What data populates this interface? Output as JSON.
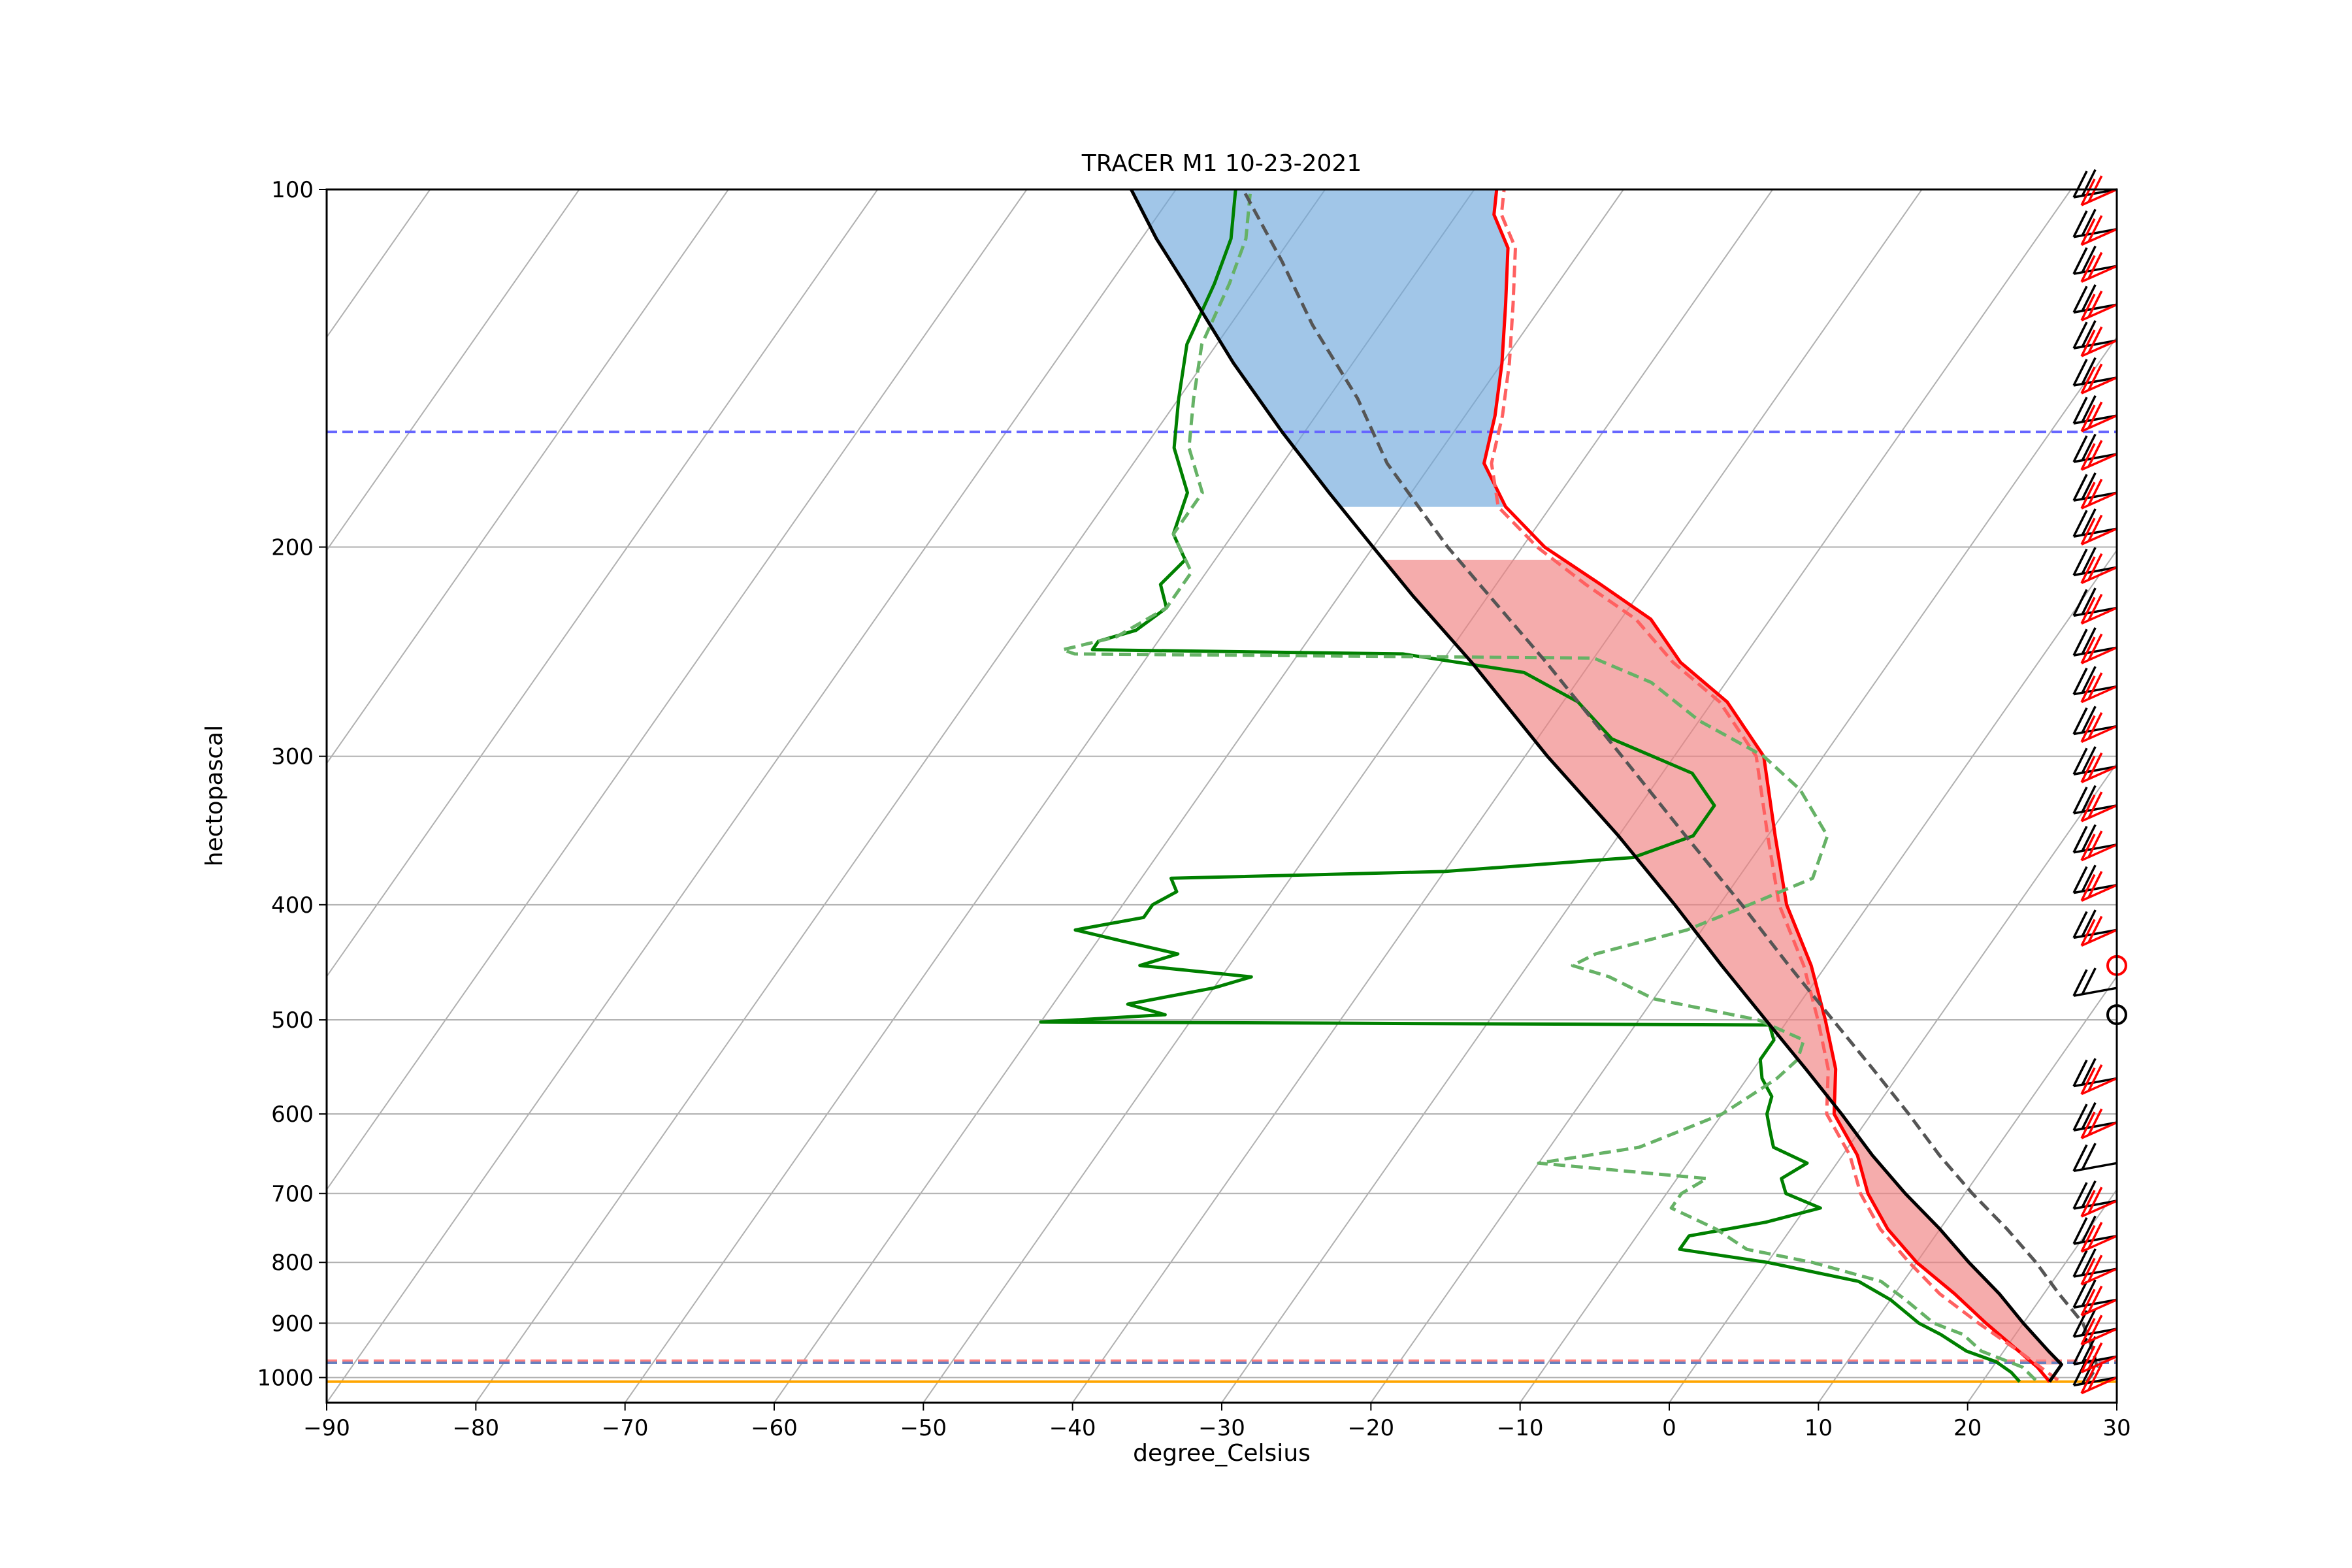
{
  "chart_data": {
    "type": "line",
    "title": "TRACER M1 10-23-2021",
    "xlabel": "degree_Celsius",
    "ylabel": "hectopascal",
    "x_scale": "skew-T",
    "y_scale": "log-pressure (inverted)",
    "xlim": [
      -90,
      30
    ],
    "ylim": [
      1050,
      100
    ],
    "grid": true,
    "x_ticks": [
      -90,
      -80,
      -70,
      -60,
      -50,
      -40,
      -30,
      -20,
      -10,
      0,
      10,
      20,
      30
    ],
    "y_ticks": [
      1000,
      900,
      800,
      700,
      600,
      500,
      400,
      300,
      200,
      100
    ],
    "series": [
      {
        "color": "#ff0000",
        "style": "solid",
        "points": [
          [
            1008,
            24.5
          ],
          [
            980,
            23
          ],
          [
            950,
            21
          ],
          [
            900,
            17.5
          ],
          [
            850,
            14
          ],
          [
            800,
            10
          ],
          [
            750,
            6.5
          ],
          [
            700,
            3.5
          ],
          [
            650,
            1
          ],
          [
            600,
            -2.5
          ],
          [
            550,
            -4.5
          ],
          [
            500,
            -7.5
          ],
          [
            450,
            -11
          ],
          [
            400,
            -15.5
          ],
          [
            350,
            -19.5
          ],
          [
            300,
            -24
          ],
          [
            270,
            -29
          ],
          [
            250,
            -34
          ],
          [
            230,
            -38
          ],
          [
            215,
            -43
          ],
          [
            200,
            -48.5
          ],
          [
            185,
            -53
          ],
          [
            170,
            -56.5
          ],
          [
            155,
            -58
          ],
          [
            140,
            -60
          ],
          [
            125,
            -62.5
          ],
          [
            112,
            -65
          ],
          [
            105,
            -67.5
          ],
          [
            100,
            -68.5
          ]
        ]
      },
      {
        "color": "#ff6060",
        "style": "dashed",
        "points": [
          [
            1005,
            25
          ],
          [
            950,
            21
          ],
          [
            900,
            17
          ],
          [
            850,
            13
          ],
          [
            800,
            9.5
          ],
          [
            750,
            6
          ],
          [
            700,
            3
          ],
          [
            650,
            0.5
          ],
          [
            600,
            -3
          ],
          [
            550,
            -5
          ],
          [
            500,
            -8
          ],
          [
            450,
            -11.5
          ],
          [
            400,
            -16
          ],
          [
            350,
            -20
          ],
          [
            300,
            -24.5
          ],
          [
            270,
            -29.5
          ],
          [
            250,
            -34.5
          ],
          [
            230,
            -39
          ],
          [
            215,
            -44
          ],
          [
            200,
            -49
          ],
          [
            185,
            -53.5
          ],
          [
            170,
            -56
          ],
          [
            155,
            -57.5
          ],
          [
            140,
            -59.5
          ],
          [
            125,
            -62
          ],
          [
            112,
            -64.5
          ],
          [
            105,
            -67
          ],
          [
            100,
            -68
          ]
        ]
      },
      {
        "color": "#008000",
        "style": "solid",
        "points": [
          [
            1008,
            22.5
          ],
          [
            990,
            21.5
          ],
          [
            970,
            20
          ],
          [
            950,
            17.5
          ],
          [
            920,
            15
          ],
          [
            900,
            13
          ],
          [
            860,
            10
          ],
          [
            830,
            7
          ],
          [
            800,
            0
          ],
          [
            780,
            -6.5
          ],
          [
            760,
            -6.5
          ],
          [
            740,
            -2
          ],
          [
            720,
            1
          ],
          [
            700,
            -2
          ],
          [
            680,
            -3
          ],
          [
            660,
            -2
          ],
          [
            640,
            -5
          ],
          [
            620,
            -6
          ],
          [
            600,
            -7
          ],
          [
            580,
            -7.5
          ],
          [
            560,
            -9
          ],
          [
            540,
            -10
          ],
          [
            520,
            -10
          ],
          [
            505,
            -11
          ],
          [
            502,
            -60
          ],
          [
            495,
            -52
          ],
          [
            485,
            -55
          ],
          [
            470,
            -50
          ],
          [
            460,
            -48
          ],
          [
            450,
            -56
          ],
          [
            440,
            -54
          ],
          [
            430,
            -58
          ],
          [
            420,
            -62
          ],
          [
            410,
            -58
          ],
          [
            400,
            -58
          ],
          [
            390,
            -57
          ],
          [
            380,
            -58
          ],
          [
            375,
            -40
          ],
          [
            365,
            -28
          ],
          [
            350,
            -25
          ],
          [
            330,
            -25
          ],
          [
            310,
            -28
          ],
          [
            290,
            -35
          ],
          [
            270,
            -39
          ],
          [
            255,
            -44
          ],
          [
            246,
            -53
          ],
          [
            244,
            -74
          ],
          [
            242,
            -74
          ],
          [
            240,
            -74
          ],
          [
            235,
            -72
          ],
          [
            225,
            -71
          ],
          [
            215,
            -72.5
          ],
          [
            205,
            -72
          ],
          [
            195,
            -74
          ],
          [
            180,
            -75
          ],
          [
            165,
            -78
          ],
          [
            150,
            -80
          ],
          [
            135,
            -82
          ],
          [
            120,
            -83
          ],
          [
            110,
            -84
          ],
          [
            100,
            -86
          ]
        ]
      },
      {
        "color": "#66b266",
        "style": "dashed",
        "points": [
          [
            1005,
            23.5
          ],
          [
            980,
            22
          ],
          [
            950,
            18.5
          ],
          [
            920,
            16.5
          ],
          [
            900,
            14
          ],
          [
            860,
            11
          ],
          [
            830,
            8.5
          ],
          [
            800,
            3
          ],
          [
            780,
            -2
          ],
          [
            750,
            -5
          ],
          [
            720,
            -9
          ],
          [
            700,
            -9
          ],
          [
            680,
            -8
          ],
          [
            660,
            -20
          ],
          [
            640,
            -14
          ],
          [
            620,
            -12
          ],
          [
            600,
            -10
          ],
          [
            580,
            -9
          ],
          [
            560,
            -8
          ],
          [
            540,
            -7.5
          ],
          [
            520,
            -8
          ],
          [
            500,
            -12
          ],
          [
            480,
            -20
          ],
          [
            460,
            -24
          ],
          [
            450,
            -27
          ],
          [
            440,
            -26
          ],
          [
            420,
            -21
          ],
          [
            400,
            -18
          ],
          [
            380,
            -15
          ],
          [
            350,
            -16
          ],
          [
            320,
            -20
          ],
          [
            300,
            -24
          ],
          [
            280,
            -30
          ],
          [
            260,
            -35
          ],
          [
            248,
            -40
          ],
          [
            246,
            -75
          ],
          [
            244,
            -76
          ],
          [
            238,
            -73
          ],
          [
            225,
            -71
          ],
          [
            210,
            -71
          ],
          [
            195,
            -74
          ],
          [
            180,
            -74
          ],
          [
            165,
            -77
          ],
          [
            150,
            -79
          ],
          [
            135,
            -81
          ],
          [
            120,
            -82
          ],
          [
            110,
            -83
          ],
          [
            100,
            -85
          ]
        ]
      },
      {
        "color": "#000000",
        "style": "solid",
        "points": [
          [
            1008,
            24.5
          ],
          [
            975,
            24.5
          ],
          [
            950,
            23
          ],
          [
            900,
            20
          ],
          [
            850,
            17
          ],
          [
            800,
            13.5
          ],
          [
            750,
            10
          ],
          [
            700,
            6
          ],
          [
            650,
            2
          ],
          [
            600,
            -2
          ],
          [
            550,
            -6.5
          ],
          [
            500,
            -11.5
          ],
          [
            450,
            -17
          ],
          [
            400,
            -23
          ],
          [
            350,
            -30
          ],
          [
            300,
            -38.5
          ],
          [
            250,
            -48
          ],
          [
            220,
            -55
          ],
          [
            200,
            -60
          ],
          [
            180,
            -65.5
          ],
          [
            160,
            -71.5
          ],
          [
            140,
            -78
          ],
          [
            120,
            -85
          ],
          [
            110,
            -89
          ],
          [
            100,
            -93
          ]
        ]
      },
      {
        "color": "#555555",
        "style": "dashed",
        "points": [
          [
            1008,
            27
          ],
          [
            980,
            27
          ],
          [
            950,
            26
          ],
          [
            900,
            24
          ],
          [
            850,
            21
          ],
          [
            800,
            18
          ],
          [
            750,
            14.5
          ],
          [
            700,
            10.5
          ],
          [
            650,
            6.5
          ],
          [
            600,
            2.5
          ],
          [
            550,
            -2
          ],
          [
            500,
            -7
          ],
          [
            450,
            -12.5
          ],
          [
            400,
            -18.5
          ],
          [
            350,
            -25.5
          ],
          [
            300,
            -33.5
          ],
          [
            250,
            -43
          ],
          [
            200,
            -55
          ],
          [
            170,
            -63
          ],
          [
            150,
            -68
          ],
          [
            130,
            -74.5
          ],
          [
            115,
            -79.5
          ],
          [
            100,
            -85.5
          ]
        ]
      }
    ],
    "reference_lines": [
      {
        "pressure": 160,
        "color": "#6666ff",
        "style": "dashed"
      },
      {
        "pressure": 968,
        "color": "#ff8080",
        "style": "dashed"
      },
      {
        "pressure": 972,
        "color": "#6680c0",
        "style": "dashed"
      },
      {
        "pressure": 1008,
        "color": "#ffa500",
        "style": "solid"
      }
    ],
    "shaded_regions": [
      {
        "name": "CAPE",
        "color": "#f08080",
        "between": [
          "parcel",
          "temperature"
        ],
        "from_hPa": 975,
        "to_hPa": 205
      },
      {
        "name": "CIN",
        "color": "#6fa8dc",
        "between": [
          "temperature",
          "parcel"
        ],
        "from_hPa": 185,
        "to_hPa": 100
      }
    ],
    "wind_barbs": [
      {
        "color": "#000000",
        "pressures": [
          100,
          108,
          116,
          125,
          134,
          144,
          155,
          167,
          180,
          193,
          208,
          225,
          243,
          262,
          283,
          306,
          330,
          356,
          385,
          420,
          470,
          560,
          610,
          660,
          710,
          760,
          810,
          860,
          910,
          960,
          1000
        ]
      },
      {
        "color": "#ff0000",
        "pressures": [
          100,
          108,
          116,
          125,
          134,
          144,
          155,
          167,
          180,
          193,
          208,
          225,
          243,
          262,
          283,
          306,
          330,
          356,
          385,
          420,
          560,
          610,
          710,
          760,
          810,
          860,
          910,
          960,
          1000
        ]
      }
    ],
    "markers": [
      {
        "color": "#ff0000",
        "shape": "circle",
        "pressure": 450
      },
      {
        "color": "#000000",
        "shape": "circle",
        "pressure": 495
      }
    ]
  }
}
